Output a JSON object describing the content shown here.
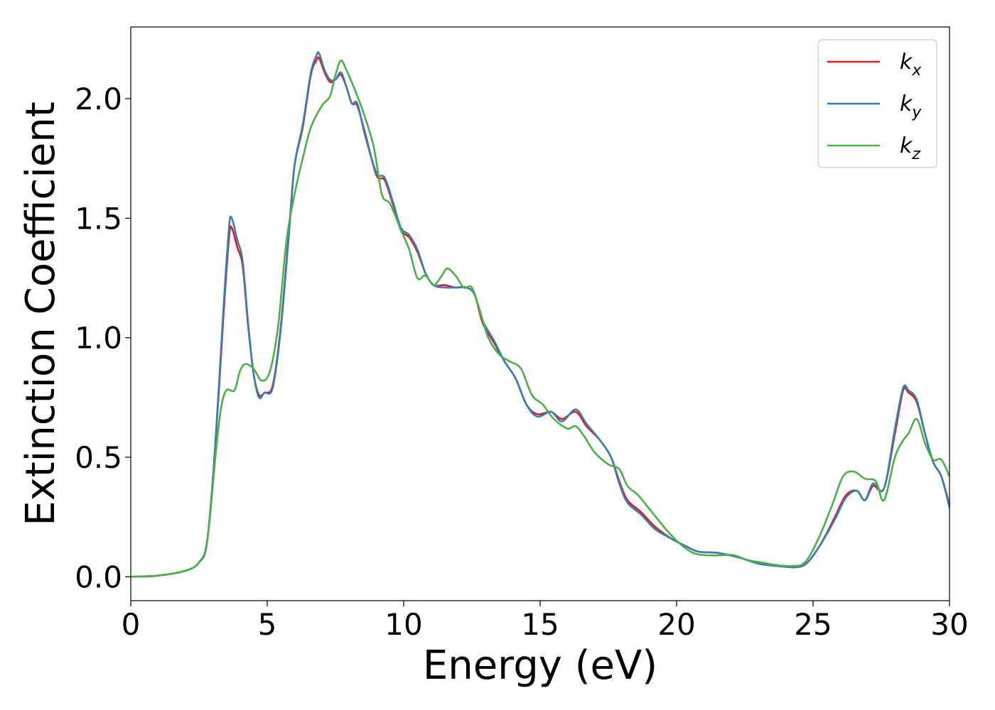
{
  "chart_data": {
    "type": "line",
    "title": "",
    "xlabel": "Energy (eV)",
    "ylabel": "Extinction Coefficient",
    "xlim": [
      0,
      30
    ],
    "ylim": [
      -0.1,
      2.3
    ],
    "xticks": [
      0,
      5,
      10,
      15,
      20,
      25,
      30
    ],
    "xtick_labels": [
      "0",
      "5",
      "10",
      "15",
      "20",
      "25",
      "30"
    ],
    "yticks": [
      0.0,
      0.5,
      1.0,
      1.5,
      2.0
    ],
    "ytick_labels": [
      "0.0",
      "0.5",
      "1.0",
      "1.5",
      "2.0"
    ],
    "grid": false,
    "legend_position": "top-right",
    "series": [
      {
        "name": "k_x",
        "legend": {
          "base": "k",
          "sub": "x"
        },
        "color": "#e41a1c",
        "points": [
          [
            0,
            0
          ],
          [
            1,
            0.005
          ],
          [
            2,
            0.025
          ],
          [
            2.5,
            0.06
          ],
          [
            2.8,
            0.15
          ],
          [
            3.1,
            0.55
          ],
          [
            3.4,
            1.1
          ],
          [
            3.6,
            1.42
          ],
          [
            3.7,
            1.46
          ],
          [
            3.9,
            1.38
          ],
          [
            4.1,
            1.3
          ],
          [
            4.3,
            1.05
          ],
          [
            4.5,
            0.85
          ],
          [
            4.7,
            0.76
          ],
          [
            4.9,
            0.77
          ],
          [
            5.2,
            0.8
          ],
          [
            5.5,
            1.05
          ],
          [
            5.8,
            1.45
          ],
          [
            6.0,
            1.72
          ],
          [
            6.3,
            1.88
          ],
          [
            6.6,
            2.1
          ],
          [
            6.8,
            2.16
          ],
          [
            6.9,
            2.17
          ],
          [
            7.1,
            2.11
          ],
          [
            7.3,
            2.07
          ],
          [
            7.5,
            2.08
          ],
          [
            7.7,
            2.1
          ],
          [
            7.9,
            2.05
          ],
          [
            8.1,
            1.98
          ],
          [
            8.3,
            1.97
          ],
          [
            8.6,
            1.85
          ],
          [
            9.0,
            1.68
          ],
          [
            9.3,
            1.66
          ],
          [
            9.6,
            1.56
          ],
          [
            9.9,
            1.45
          ],
          [
            10.2,
            1.42
          ],
          [
            10.5,
            1.36
          ],
          [
            10.8,
            1.27
          ],
          [
            11.1,
            1.22
          ],
          [
            11.5,
            1.22
          ],
          [
            11.9,
            1.21
          ],
          [
            12.3,
            1.21
          ],
          [
            12.6,
            1.18
          ],
          [
            12.9,
            1.06
          ],
          [
            13.3,
            0.98
          ],
          [
            13.7,
            0.9
          ],
          [
            14.1,
            0.83
          ],
          [
            14.5,
            0.72
          ],
          [
            14.9,
            0.68
          ],
          [
            15.4,
            0.69
          ],
          [
            15.8,
            0.66
          ],
          [
            16.3,
            0.69
          ],
          [
            16.7,
            0.63
          ],
          [
            17.2,
            0.57
          ],
          [
            17.6,
            0.5
          ],
          [
            17.9,
            0.4
          ],
          [
            18.2,
            0.32
          ],
          [
            18.7,
            0.27
          ],
          [
            19.2,
            0.21
          ],
          [
            19.8,
            0.16
          ],
          [
            20.3,
            0.13
          ],
          [
            20.8,
            0.105
          ],
          [
            21.5,
            0.1
          ],
          [
            22.3,
            0.08
          ],
          [
            23.0,
            0.055
          ],
          [
            23.7,
            0.045
          ],
          [
            24.4,
            0.04
          ],
          [
            24.8,
            0.06
          ],
          [
            25.3,
            0.14
          ],
          [
            25.8,
            0.25
          ],
          [
            26.2,
            0.34
          ],
          [
            26.6,
            0.36
          ],
          [
            26.9,
            0.32
          ],
          [
            27.2,
            0.38
          ],
          [
            27.6,
            0.37
          ],
          [
            28.0,
            0.6
          ],
          [
            28.3,
            0.78
          ],
          [
            28.5,
            0.77
          ],
          [
            28.8,
            0.73
          ],
          [
            29.1,
            0.6
          ],
          [
            29.4,
            0.48
          ],
          [
            29.7,
            0.42
          ],
          [
            30,
            0.3
          ]
        ]
      },
      {
        "name": "k_y",
        "legend": {
          "base": "k",
          "sub": "y"
        },
        "color": "#377eb8",
        "points": [
          [
            0,
            0
          ],
          [
            1,
            0.005
          ],
          [
            2,
            0.025
          ],
          [
            2.5,
            0.06
          ],
          [
            2.8,
            0.15
          ],
          [
            3.1,
            0.56
          ],
          [
            3.4,
            1.13
          ],
          [
            3.6,
            1.46
          ],
          [
            3.7,
            1.5
          ],
          [
            3.9,
            1.41
          ],
          [
            4.1,
            1.32
          ],
          [
            4.3,
            1.06
          ],
          [
            4.5,
            0.85
          ],
          [
            4.7,
            0.75
          ],
          [
            4.9,
            0.77
          ],
          [
            5.2,
            0.79
          ],
          [
            5.5,
            1.04
          ],
          [
            5.8,
            1.44
          ],
          [
            6.0,
            1.72
          ],
          [
            6.3,
            1.89
          ],
          [
            6.6,
            2.11
          ],
          [
            6.8,
            2.18
          ],
          [
            6.9,
            2.19
          ],
          [
            7.1,
            2.12
          ],
          [
            7.3,
            2.08
          ],
          [
            7.5,
            2.08
          ],
          [
            7.7,
            2.11
          ],
          [
            7.9,
            2.05
          ],
          [
            8.1,
            1.98
          ],
          [
            8.3,
            1.98
          ],
          [
            8.6,
            1.84
          ],
          [
            9.0,
            1.69
          ],
          [
            9.3,
            1.67
          ],
          [
            9.6,
            1.57
          ],
          [
            9.9,
            1.46
          ],
          [
            10.2,
            1.43
          ],
          [
            10.5,
            1.37
          ],
          [
            10.8,
            1.27
          ],
          [
            11.1,
            1.22
          ],
          [
            11.5,
            1.21
          ],
          [
            11.9,
            1.21
          ],
          [
            12.3,
            1.21
          ],
          [
            12.6,
            1.18
          ],
          [
            12.9,
            1.07
          ],
          [
            13.3,
            0.99
          ],
          [
            13.7,
            0.9
          ],
          [
            14.1,
            0.83
          ],
          [
            14.5,
            0.72
          ],
          [
            14.9,
            0.67
          ],
          [
            15.4,
            0.69
          ],
          [
            15.8,
            0.65
          ],
          [
            16.3,
            0.7
          ],
          [
            16.7,
            0.64
          ],
          [
            17.2,
            0.57
          ],
          [
            17.6,
            0.5
          ],
          [
            17.9,
            0.39
          ],
          [
            18.2,
            0.31
          ],
          [
            18.7,
            0.26
          ],
          [
            19.2,
            0.2
          ],
          [
            19.8,
            0.16
          ],
          [
            20.3,
            0.13
          ],
          [
            20.8,
            0.105
          ],
          [
            21.5,
            0.1
          ],
          [
            22.3,
            0.08
          ],
          [
            23.0,
            0.055
          ],
          [
            23.7,
            0.045
          ],
          [
            24.4,
            0.04
          ],
          [
            24.8,
            0.06
          ],
          [
            25.3,
            0.14
          ],
          [
            25.8,
            0.24
          ],
          [
            26.2,
            0.33
          ],
          [
            26.6,
            0.36
          ],
          [
            26.9,
            0.32
          ],
          [
            27.2,
            0.39
          ],
          [
            27.6,
            0.37
          ],
          [
            28.0,
            0.62
          ],
          [
            28.3,
            0.79
          ],
          [
            28.5,
            0.78
          ],
          [
            28.8,
            0.74
          ],
          [
            29.1,
            0.6
          ],
          [
            29.4,
            0.48
          ],
          [
            29.7,
            0.42
          ],
          [
            30,
            0.29
          ]
        ]
      },
      {
        "name": "k_z",
        "legend": {
          "base": "k",
          "sub": "z"
        },
        "color": "#4daf4a",
        "points": [
          [
            0,
            0
          ],
          [
            1,
            0.005
          ],
          [
            2,
            0.025
          ],
          [
            2.5,
            0.06
          ],
          [
            2.8,
            0.15
          ],
          [
            3.1,
            0.5
          ],
          [
            3.3,
            0.7
          ],
          [
            3.5,
            0.78
          ],
          [
            3.8,
            0.78
          ],
          [
            4.0,
            0.86
          ],
          [
            4.2,
            0.89
          ],
          [
            4.5,
            0.87
          ],
          [
            4.8,
            0.82
          ],
          [
            5.1,
            0.86
          ],
          [
            5.4,
            1.05
          ],
          [
            5.7,
            1.4
          ],
          [
            6.0,
            1.6
          ],
          [
            6.3,
            1.75
          ],
          [
            6.6,
            1.88
          ],
          [
            7.0,
            1.97
          ],
          [
            7.3,
            2.01
          ],
          [
            7.5,
            2.1
          ],
          [
            7.7,
            2.16
          ],
          [
            7.9,
            2.12
          ],
          [
            8.2,
            2.04
          ],
          [
            8.5,
            1.95
          ],
          [
            8.9,
            1.8
          ],
          [
            9.2,
            1.6
          ],
          [
            9.5,
            1.56
          ],
          [
            9.9,
            1.45
          ],
          [
            10.2,
            1.37
          ],
          [
            10.5,
            1.25
          ],
          [
            10.8,
            1.26
          ],
          [
            11.1,
            1.22
          ],
          [
            11.4,
            1.26
          ],
          [
            11.6,
            1.29
          ],
          [
            11.9,
            1.26
          ],
          [
            12.2,
            1.21
          ],
          [
            12.5,
            1.21
          ],
          [
            12.8,
            1.11
          ],
          [
            13.1,
            1.0
          ],
          [
            13.5,
            0.93
          ],
          [
            13.9,
            0.9
          ],
          [
            14.3,
            0.87
          ],
          [
            14.7,
            0.76
          ],
          [
            15.1,
            0.72
          ],
          [
            15.5,
            0.66
          ],
          [
            16.0,
            0.62
          ],
          [
            16.3,
            0.63
          ],
          [
            16.6,
            0.59
          ],
          [
            17.0,
            0.52
          ],
          [
            17.5,
            0.47
          ],
          [
            17.9,
            0.45
          ],
          [
            18.2,
            0.38
          ],
          [
            18.6,
            0.34
          ],
          [
            19.1,
            0.27
          ],
          [
            19.6,
            0.2
          ],
          [
            20.1,
            0.14
          ],
          [
            20.6,
            0.1
          ],
          [
            21.1,
            0.09
          ],
          [
            21.6,
            0.09
          ],
          [
            22.1,
            0.09
          ],
          [
            22.6,
            0.07
          ],
          [
            23.1,
            0.06
          ],
          [
            23.6,
            0.05
          ],
          [
            24.2,
            0.045
          ],
          [
            24.7,
            0.06
          ],
          [
            25.2,
            0.16
          ],
          [
            25.7,
            0.3
          ],
          [
            26.1,
            0.42
          ],
          [
            26.5,
            0.44
          ],
          [
            26.9,
            0.41
          ],
          [
            27.3,
            0.4
          ],
          [
            27.6,
            0.32
          ],
          [
            28.0,
            0.5
          ],
          [
            28.3,
            0.57
          ],
          [
            28.5,
            0.6
          ],
          [
            28.8,
            0.66
          ],
          [
            29.1,
            0.56
          ],
          [
            29.4,
            0.49
          ],
          [
            29.7,
            0.49
          ],
          [
            30,
            0.42
          ]
        ]
      }
    ]
  }
}
